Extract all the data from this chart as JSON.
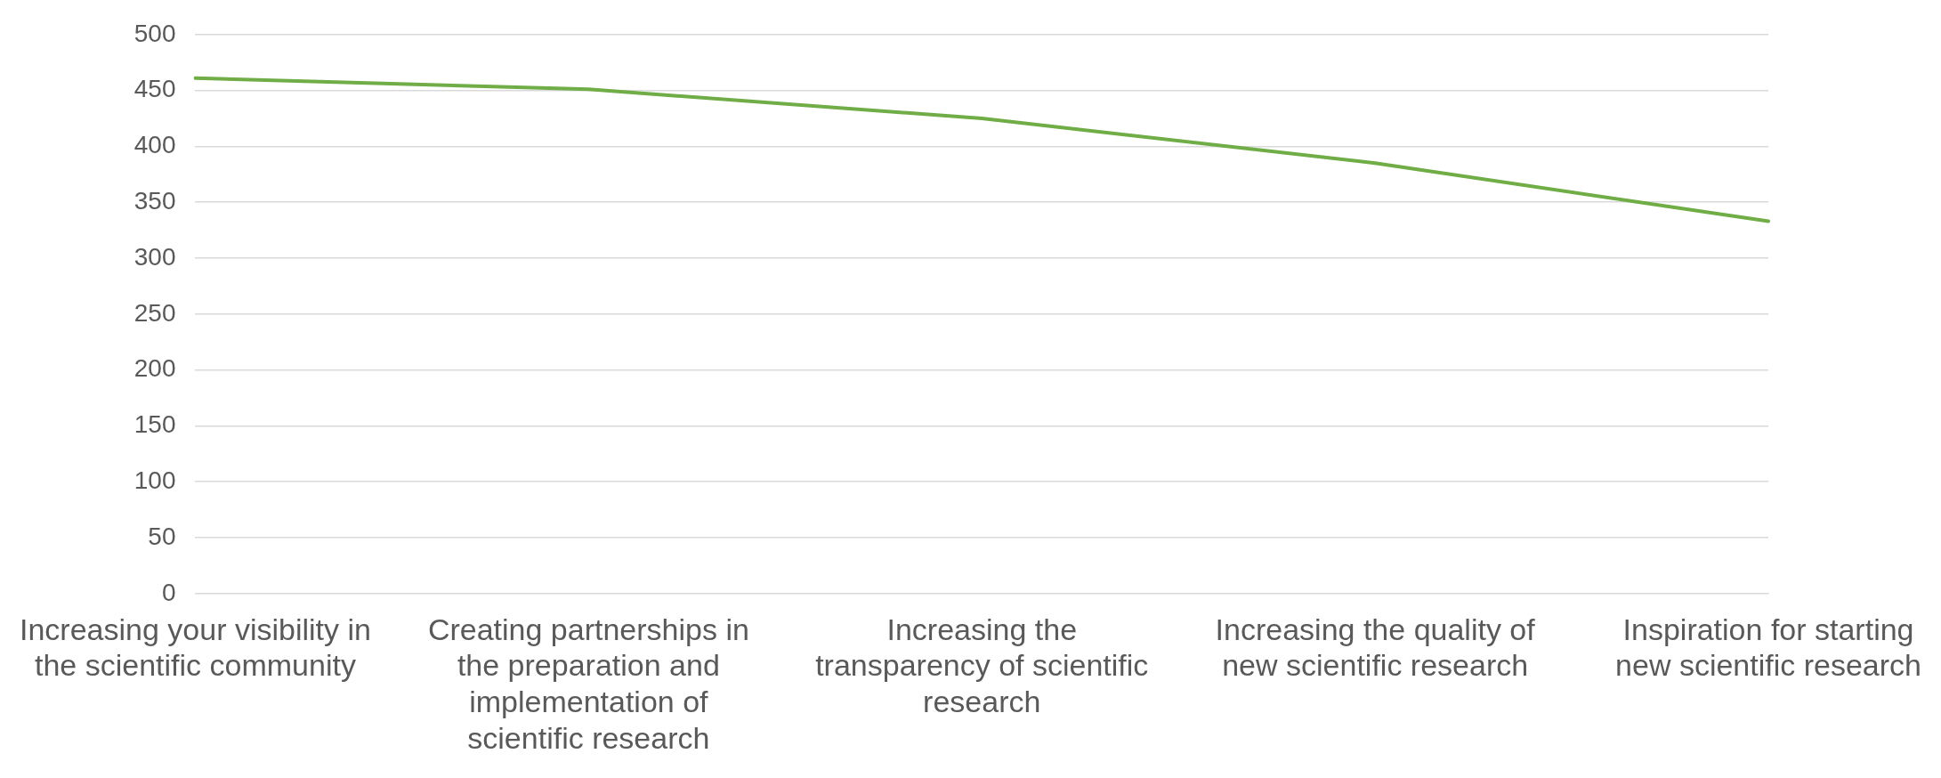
{
  "chart_data": {
    "type": "line",
    "categories": [
      "Increasing your visibility in the scientific community",
      "Creating partnerships in the preparation and implementation of scientific research",
      "Increasing the transparency of scientific research",
      "Increasing the quality of new scientific research",
      "Inspiration for starting new scientific research"
    ],
    "series": [
      {
        "color": "#70ad47",
        "values": [
          461,
          451,
          425,
          385,
          333
        ]
      }
    ],
    "ylim": [
      0,
      500
    ],
    "yticks": [
      0,
      50,
      100,
      150,
      200,
      250,
      300,
      350,
      400,
      450,
      500
    ],
    "grid": "y",
    "legend": false,
    "marker": "none",
    "line_style": "solid"
  }
}
